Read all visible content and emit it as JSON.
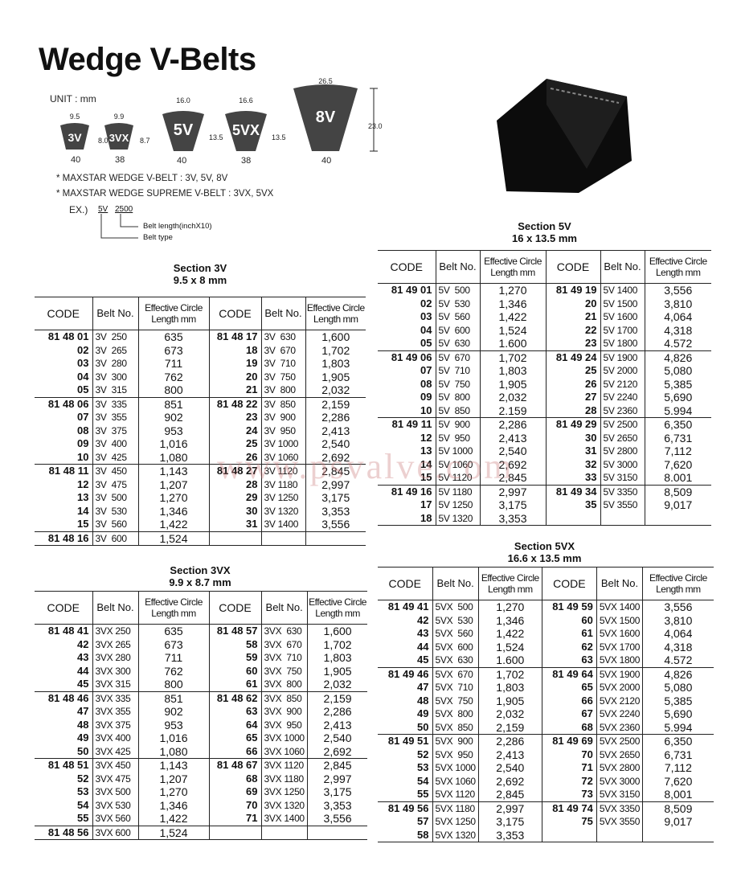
{
  "title": "Wedge V-Belts",
  "unit_label": "UNIT : mm",
  "profiles": [
    {
      "name": "3V",
      "top_width": "9.5",
      "height": "8.0",
      "angle": "40"
    },
    {
      "name": "3VX",
      "top_width": "9.9",
      "height": "8.7",
      "angle": "38"
    },
    {
      "name": "5V",
      "top_width": "16.0",
      "height": "13.5",
      "angle": "40"
    },
    {
      "name": "5VX",
      "top_width": "16.6",
      "height": "13.5",
      "angle": "38"
    },
    {
      "name": "8V",
      "top_width": "26.5",
      "height": "23.0",
      "angle": "40"
    }
  ],
  "notes": [
    "* MAXSTAR WEDGE V-BELT : 3V, 5V, 8V",
    "* MAXSTAR WEDGE SUPREME V-BELT : 3VX, 5VX"
  ],
  "example": {
    "prefix": "EX.)",
    "type": "5V",
    "length": "2500",
    "length_label": "Belt length(inchX10)",
    "type_label": "Belt type"
  },
  "headers": {
    "code": "CODE",
    "belt": "Belt No.",
    "len1": "Effective Circle",
    "len2": "Length mm"
  },
  "watermark": "www.psvalve.com",
  "tables": {
    "s3v": {
      "title": "Section 3V",
      "dims": "9.5 x 8 mm",
      "rows": [
        [
          "81 48 01",
          "3V  250",
          "635",
          "81 48 17",
          "3V  630",
          "1,600"
        ],
        [
          "02",
          "3V  265",
          "673",
          "18",
          "3V  670",
          "1,702"
        ],
        [
          "03",
          "3V  280",
          "711",
          "19",
          "3V  710",
          "1,803"
        ],
        [
          "04",
          "3V  300",
          "762",
          "20",
          "3V  750",
          "1,905"
        ],
        [
          "05",
          "3V  315",
          "800",
          "21",
          "3V  800",
          "2,032"
        ],
        [
          "81 48 06",
          "3V  335",
          "851",
          "81 48 22",
          "3V  850",
          "2,159"
        ],
        [
          "07",
          "3V  355",
          "902",
          "23",
          "3V  900",
          "2,286"
        ],
        [
          "08",
          "3V  375",
          "953",
          "24",
          "3V  950",
          "2,413"
        ],
        [
          "09",
          "3V  400",
          "1,016",
          "25",
          "3V 1000",
          "2,540"
        ],
        [
          "10",
          "3V  425",
          "1,080",
          "26",
          "3V 1060",
          "2,692"
        ],
        [
          "81 48 11",
          "3V  450",
          "1,143",
          "81 48 27",
          "3V 1120",
          "2,845"
        ],
        [
          "12",
          "3V  475",
          "1,207",
          "28",
          "3V 1180",
          "2,997"
        ],
        [
          "13",
          "3V  500",
          "1,270",
          "29",
          "3V 1250",
          "3,175"
        ],
        [
          "14",
          "3V  530",
          "1,346",
          "30",
          "3V 1320",
          "3,353"
        ],
        [
          "15",
          "3V  560",
          "1,422",
          "31",
          "3V 1400",
          "3,556"
        ],
        [
          "81 48 16",
          "3V  600",
          "1,524",
          "",
          "",
          ""
        ]
      ]
    },
    "s3vx": {
      "title": "Section 3VX",
      "dims": "9.9 x 8.7 mm",
      "rows": [
        [
          "81 48 41",
          "3VX 250",
          "635",
          "81 48 57",
          "3VX  630",
          "1,600"
        ],
        [
          "42",
          "3VX 265",
          "673",
          "58",
          "3VX  670",
          "1,702"
        ],
        [
          "43",
          "3VX 280",
          "711",
          "59",
          "3VX  710",
          "1,803"
        ],
        [
          "44",
          "3VX 300",
          "762",
          "60",
          "3VX  750",
          "1,905"
        ],
        [
          "45",
          "3VX 315",
          "800",
          "61",
          "3VX  800",
          "2,032"
        ],
        [
          "81 48 46",
          "3VX 335",
          "851",
          "81 48 62",
          "3VX  850",
          "2,159"
        ],
        [
          "47",
          "3VX 355",
          "902",
          "63",
          "3VX  900",
          "2,286"
        ],
        [
          "48",
          "3VX 375",
          "953",
          "64",
          "3VX  950",
          "2,413"
        ],
        [
          "49",
          "3VX 400",
          "1,016",
          "65",
          "3VX 1000",
          "2,540"
        ],
        [
          "50",
          "3VX 425",
          "1,080",
          "66",
          "3VX 1060",
          "2,692"
        ],
        [
          "81 48 51",
          "3VX 450",
          "1,143",
          "81 48 67",
          "3VX 1120",
          "2,845"
        ],
        [
          "52",
          "3VX 475",
          "1,207",
          "68",
          "3VX 1180",
          "2,997"
        ],
        [
          "53",
          "3VX 500",
          "1,270",
          "69",
          "3VX 1250",
          "3,175"
        ],
        [
          "54",
          "3VX 530",
          "1,346",
          "70",
          "3VX 1320",
          "3,353"
        ],
        [
          "55",
          "3VX 560",
          "1,422",
          "71",
          "3VX 1400",
          "3,556"
        ],
        [
          "81 48 56",
          "3VX 600",
          "1,524",
          "",
          "",
          ""
        ]
      ]
    },
    "s5v": {
      "title": "Section 5V",
      "dims": "16 x 13.5 mm",
      "rows": [
        [
          "81 49 01",
          "5V  500",
          "1,270",
          "81 49 19",
          "5V 1400",
          "3,556"
        ],
        [
          "02",
          "5V  530",
          "1,346",
          "20",
          "5V 1500",
          "3,810"
        ],
        [
          "03",
          "5V  560",
          "1,422",
          "21",
          "5V 1600",
          "4,064"
        ],
        [
          "04",
          "5V  600",
          "1,524",
          "22",
          "5V 1700",
          "4,318"
        ],
        [
          "05",
          "5V  630",
          "1.600",
          "23",
          "5V 1800",
          "4.572"
        ],
        [
          "81 49 06",
          "5V  670",
          "1,702",
          "81 49 24",
          "5V 1900",
          "4,826"
        ],
        [
          "07",
          "5V  710",
          "1,803",
          "25",
          "5V 2000",
          "5,080"
        ],
        [
          "08",
          "5V  750",
          "1,905",
          "26",
          "5V 2120",
          "5,385"
        ],
        [
          "09",
          "5V  800",
          "2,032",
          "27",
          "5V 2240",
          "5,690"
        ],
        [
          "10",
          "5V  850",
          "2.159",
          "28",
          "5V 2360",
          "5.994"
        ],
        [
          "81 49 11",
          "5V  900",
          "2,286",
          "81 49 29",
          "5V 2500",
          "6,350"
        ],
        [
          "12",
          "5V  950",
          "2,413",
          "30",
          "5V 2650",
          "6,731"
        ],
        [
          "13",
          "5V 1000",
          "2,540",
          "31",
          "5V 2800",
          "7,112"
        ],
        [
          "14",
          "5V 1060",
          "2,692",
          "32",
          "5V 3000",
          "7,620"
        ],
        [
          "15",
          "5V 1120",
          "2,845",
          "33",
          "5V 3150",
          "8.001"
        ],
        [
          "81 49 16",
          "5V 1180",
          "2,997",
          "81 49 34",
          "5V 3350",
          "8,509"
        ],
        [
          "17",
          "5V 1250",
          "3,175",
          "35",
          "5V 3550",
          "9,017"
        ],
        [
          "18",
          "5V 1320",
          "3,353",
          "",
          "",
          ""
        ]
      ]
    },
    "s5vx": {
      "title": "Section 5VX",
      "dims": "16.6 x 13.5 mm",
      "rows": [
        [
          "81 49 41",
          "5VX  500",
          "1,270",
          "81 49 59",
          "5VX 1400",
          "3,556"
        ],
        [
          "42",
          "5VX  530",
          "1,346",
          "60",
          "5VX 1500",
          "3,810"
        ],
        [
          "43",
          "5VX  560",
          "1,422",
          "61",
          "5VX 1600",
          "4,064"
        ],
        [
          "44",
          "5VX  600",
          "1,524",
          "62",
          "5VX 1700",
          "4,318"
        ],
        [
          "45",
          "5VX  630",
          "1.600",
          "63",
          "5VX 1800",
          "4.572"
        ],
        [
          "81 49 46",
          "5VX  670",
          "1,702",
          "81 49 64",
          "5VX 1900",
          "4,826"
        ],
        [
          "47",
          "5VX  710",
          "1,803",
          "65",
          "5VX 2000",
          "5,080"
        ],
        [
          "48",
          "5VX  750",
          "1,905",
          "66",
          "5VX 2120",
          "5,385"
        ],
        [
          "49",
          "5VX  800",
          "2,032",
          "67",
          "5VX 2240",
          "5,690"
        ],
        [
          "50",
          "5VX  850",
          "2,159",
          "68",
          "5VX 2360",
          "5.994"
        ],
        [
          "81 49 51",
          "5VX  900",
          "2,286",
          "81 49 69",
          "5VX 2500",
          "6,350"
        ],
        [
          "52",
          "5VX  950",
          "2,413",
          "70",
          "5VX 2650",
          "6,731"
        ],
        [
          "53",
          "5VX 1000",
          "2,540",
          "71",
          "5VX 2800",
          "7,112"
        ],
        [
          "54",
          "5VX 1060",
          "2,692",
          "72",
          "5VX 3000",
          "7,620"
        ],
        [
          "55",
          "5VX 1120",
          "2,845",
          "73",
          "5VX 3150",
          "8,001"
        ],
        [
          "81 49 56",
          "5VX 1180",
          "2,997",
          "81 49 74",
          "5VX 3350",
          "8,509"
        ],
        [
          "57",
          "5VX 1250",
          "3,175",
          "75",
          "5VX 3550",
          "9,017"
        ],
        [
          "58",
          "5VX 1320",
          "3,353",
          "",
          "",
          ""
        ]
      ]
    }
  }
}
